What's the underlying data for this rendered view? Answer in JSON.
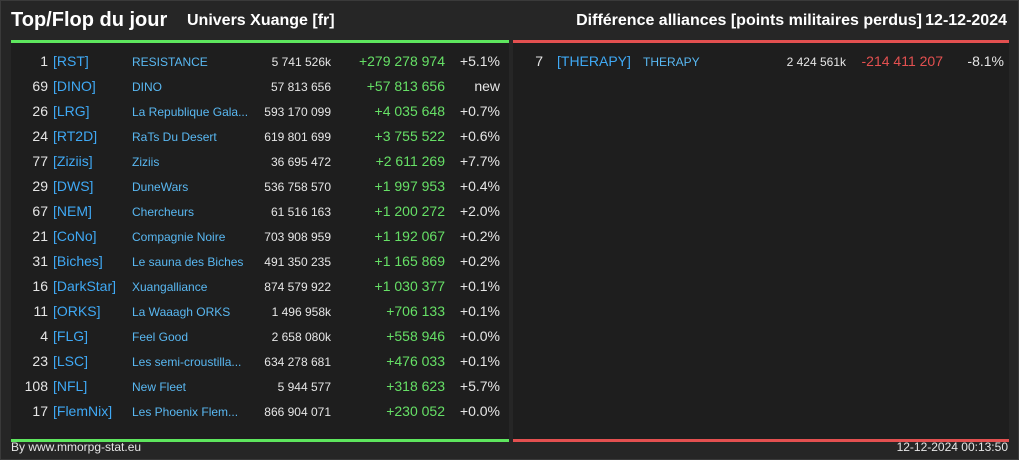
{
  "header": {
    "title": "Top/Flop du jour",
    "universe": "Univers Xuange [fr]",
    "subtitle": "Différence alliances [points militaires perdus]",
    "date": "12-12-2024"
  },
  "top": [
    {
      "rank": "1",
      "tag": "[RST]",
      "name": "RESISTANCE",
      "points": "5 741 526k",
      "diff": "+279 278 974",
      "pct": "+5.1%"
    },
    {
      "rank": "69",
      "tag": "[DINO]",
      "name": "DINO",
      "points": "57 813 656",
      "diff": "+57 813 656",
      "pct": "new"
    },
    {
      "rank": "26",
      "tag": "[LRG]",
      "name": "La Republique Gala...",
      "points": "593 170 099",
      "diff": "+4 035 648",
      "pct": "+0.7%"
    },
    {
      "rank": "24",
      "tag": "[RT2D]",
      "name": "RaTs Du Desert",
      "points": "619 801 699",
      "diff": "+3 755 522",
      "pct": "+0.6%"
    },
    {
      "rank": "77",
      "tag": "[Ziziis]",
      "name": "Ziziis",
      "points": "36 695 472",
      "diff": "+2 611 269",
      "pct": "+7.7%"
    },
    {
      "rank": "29",
      "tag": "[DWS]",
      "name": "DuneWars",
      "points": "536 758 570",
      "diff": "+1 997 953",
      "pct": "+0.4%"
    },
    {
      "rank": "67",
      "tag": "[NEM]",
      "name": "Chercheurs",
      "points": "61 516 163",
      "diff": "+1 200 272",
      "pct": "+2.0%"
    },
    {
      "rank": "21",
      "tag": "[CoNo]",
      "name": "Compagnie Noire",
      "points": "703 908 959",
      "diff": "+1 192 067",
      "pct": "+0.2%"
    },
    {
      "rank": "31",
      "tag": "[Biches]",
      "name": "Le sauna des Biches",
      "points": "491 350 235",
      "diff": "+1 165 869",
      "pct": "+0.2%"
    },
    {
      "rank": "16",
      "tag": "[DarkStar]",
      "name": "Xuangalliance",
      "points": "874 579 922",
      "diff": "+1 030 377",
      "pct": "+0.1%"
    },
    {
      "rank": "11",
      "tag": "[ORKS]",
      "name": "La Waaagh ORKS",
      "points": "1 496 958k",
      "diff": "+706 133",
      "pct": "+0.1%"
    },
    {
      "rank": "4",
      "tag": "[FLG]",
      "name": "Feel Good",
      "points": "2 658 080k",
      "diff": "+558 946",
      "pct": "+0.0%"
    },
    {
      "rank": "23",
      "tag": "[LSC]",
      "name": "Les semi-croustilla...",
      "points": "634 278 681",
      "diff": "+476 033",
      "pct": "+0.1%"
    },
    {
      "rank": "108",
      "tag": "[NFL]",
      "name": "New Fleet",
      "points": "5 944 577",
      "diff": "+318 623",
      "pct": "+5.7%"
    },
    {
      "rank": "17",
      "tag": "[FlemNix]",
      "name": "Les Phoenix Flem...",
      "points": "866 904 071",
      "diff": "+230 052",
      "pct": "+0.0%"
    }
  ],
  "flop": [
    {
      "rank": "7",
      "tag": "[THERAPY]",
      "name": "THERAPY",
      "points": "2 424 561k",
      "diff": "-214 411 207",
      "pct": "-8.1%"
    }
  ],
  "footer": {
    "source": "By www.mmorpg-stat.eu",
    "timestamp": "12-12-2024 00:13:50"
  },
  "colors": {
    "top_accent": "#5ee65e",
    "flop_accent": "#e35050",
    "tag": "#3fa9f5"
  }
}
